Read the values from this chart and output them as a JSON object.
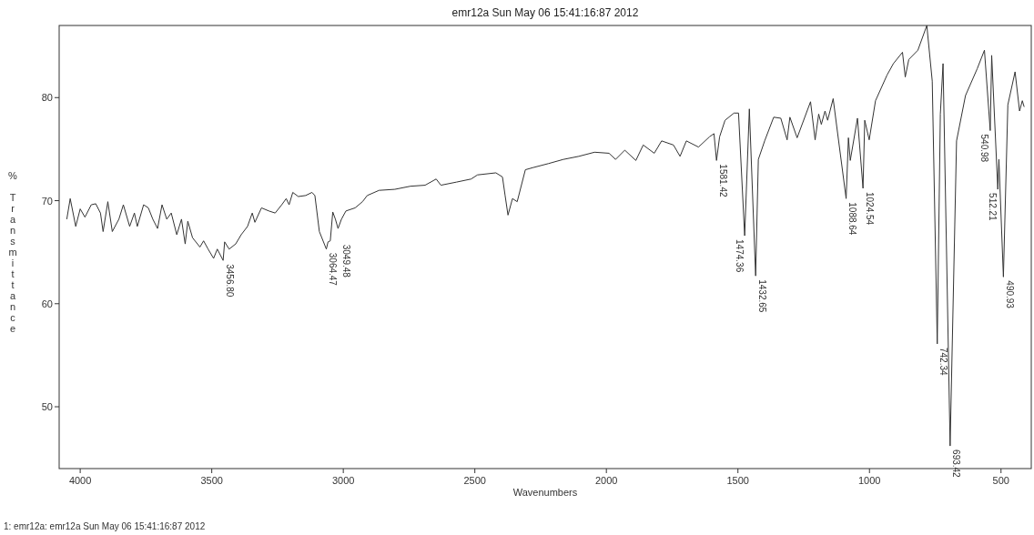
{
  "chart_data": {
    "type": "line",
    "title": "emr12a   Sun May 06 15:41:16:87 2012",
    "xlabel": "Wavenumbers",
    "ylabel": "% Transmittance",
    "xlim": [
      4080,
      385
    ],
    "ylim": [
      44,
      87
    ],
    "xticks": [
      4000,
      3500,
      3000,
      2500,
      2000,
      1500,
      1000,
      500
    ],
    "yticks": [
      50,
      60,
      70,
      80
    ],
    "grid": false,
    "marker": "none",
    "line_style": "solid",
    "series": [
      {
        "color": "#333333",
        "x": [
          4051,
          4038,
          4017,
          4000,
          3982,
          3958,
          3941,
          3923,
          3913,
          3895,
          3878,
          3853,
          3836,
          3812,
          3794,
          3783,
          3759,
          3741,
          3724,
          3706,
          3689,
          3671,
          3654,
          3633,
          3615,
          3601,
          3591,
          3573,
          3545,
          3531,
          3514,
          3493,
          3479,
          3456.8,
          3451,
          3434,
          3409,
          3388,
          3364,
          3346,
          3336,
          3311,
          3283,
          3259,
          3234,
          3217,
          3206,
          3192,
          3171,
          3143,
          3119,
          3108,
          3091,
          3064.47,
          3058,
          3049.48,
          3040,
          3030,
          3020,
          3007,
          2990,
          2955,
          2927,
          2909,
          2864,
          2804,
          2745,
          2689,
          2647,
          2629,
          2570,
          2514,
          2490,
          2420,
          2395,
          2385,
          2374,
          2357,
          2339,
          2308,
          2280,
          2220,
          2164,
          2105,
          2045,
          1990,
          1965,
          1930,
          1888,
          1860,
          1818,
          1790,
          1745,
          1720,
          1696,
          1650,
          1608,
          1591,
          1581.42,
          1569.6,
          1549,
          1515,
          1497.7,
          1474.36,
          1456.6,
          1432.65,
          1422.4,
          1398.4,
          1364,
          1337,
          1313,
          1302.5,
          1275,
          1224,
          1206.6,
          1193,
          1183,
          1169,
          1159,
          1138,
          1124.4,
          1088.64,
          1080,
          1073,
          1045.6,
          1024.54,
          1018,
          1001,
          977,
          933,
          909,
          874.5,
          864,
          850.5,
          816,
          782,
          761.4,
          742.34,
          730.6,
          720.3,
          693.42,
          669,
          635,
          590.5,
          563,
          540.98,
          535.4,
          512.21,
          508,
          490.93,
          474,
          446.6,
          429.5,
          419,
          412
        ],
        "values": [
          68.2,
          70.2,
          67.5,
          69.2,
          68.4,
          69.6,
          69.7,
          68.8,
          67.0,
          69.9,
          67.0,
          68.2,
          69.6,
          67.5,
          68.8,
          67.5,
          69.6,
          69.3,
          68.2,
          67.3,
          69.6,
          68.2,
          68.8,
          66.7,
          68.2,
          65.8,
          68.0,
          66.4,
          65.5,
          66.1,
          65.3,
          64.4,
          65.3,
          64.2,
          66.0,
          65.3,
          65.8,
          66.7,
          67.5,
          68.8,
          67.9,
          69.3,
          69.0,
          68.8,
          69.6,
          70.2,
          69.6,
          70.8,
          70.4,
          70.5,
          70.8,
          70.5,
          67.0,
          65.3,
          66.0,
          66.1,
          68.9,
          68.2,
          67.3,
          68.2,
          69.0,
          69.3,
          69.9,
          70.5,
          71.0,
          71.1,
          71.4,
          71.5,
          72.1,
          71.5,
          71.8,
          72.1,
          72.5,
          72.7,
          72.3,
          70.5,
          68.6,
          70.2,
          69.9,
          73.0,
          73.2,
          73.6,
          74.0,
          74.3,
          74.7,
          74.6,
          74.0,
          74.9,
          73.9,
          75.4,
          74.6,
          75.8,
          75.4,
          74.3,
          75.8,
          75.2,
          76.2,
          76.5,
          73.9,
          76.2,
          77.8,
          78.5,
          78.5,
          66.6,
          78.9,
          62.7,
          74.0,
          75.8,
          78.1,
          78.0,
          75.9,
          78.1,
          76.1,
          79.6,
          75.9,
          78.4,
          77.4,
          78.7,
          77.8,
          79.9,
          77.2,
          70.2,
          76.1,
          73.9,
          78.0,
          71.2,
          77.8,
          75.9,
          79.7,
          82.2,
          83.3,
          84.4,
          82.0,
          83.7,
          84.6,
          87.0,
          81.6,
          56.1,
          78.4,
          83.3,
          46.2,
          75.8,
          80.2,
          82.8,
          84.6,
          76.8,
          84.1,
          71.1,
          74.0,
          62.6,
          79.3,
          82.5,
          78.7,
          79.7,
          79.1
        ]
      }
    ],
    "annotations": [
      {
        "text": "3456.80",
        "x": 3456.8,
        "y": 64.2
      },
      {
        "text": "3064.47",
        "x": 3064.47,
        "y": 65.3
      },
      {
        "text": "3049.48",
        "x": 3049.48,
        "y": 66.1
      },
      {
        "text": "1581.42",
        "x": 1581.42,
        "y": 73.9
      },
      {
        "text": "1474.36",
        "x": 1474.36,
        "y": 66.6
      },
      {
        "text": "1432.65",
        "x": 1432.65,
        "y": 62.7
      },
      {
        "text": "1088.64",
        "x": 1088.64,
        "y": 70.2
      },
      {
        "text": "1024.54",
        "x": 1024.54,
        "y": 71.2
      },
      {
        "text": "742.34",
        "x": 742.34,
        "y": 56.1
      },
      {
        "text": "693.42",
        "x": 693.42,
        "y": 46.2
      },
      {
        "text": "540.98",
        "x": 540.98,
        "y": 76.8
      },
      {
        "text": "512.21",
        "x": 512.21,
        "y": 71.1
      },
      {
        "text": "490.93",
        "x": 490.93,
        "y": 62.6
      },
      "1: emr12a: emr12a   Sun May 06 15:41:16:87 2012"
    ]
  }
}
